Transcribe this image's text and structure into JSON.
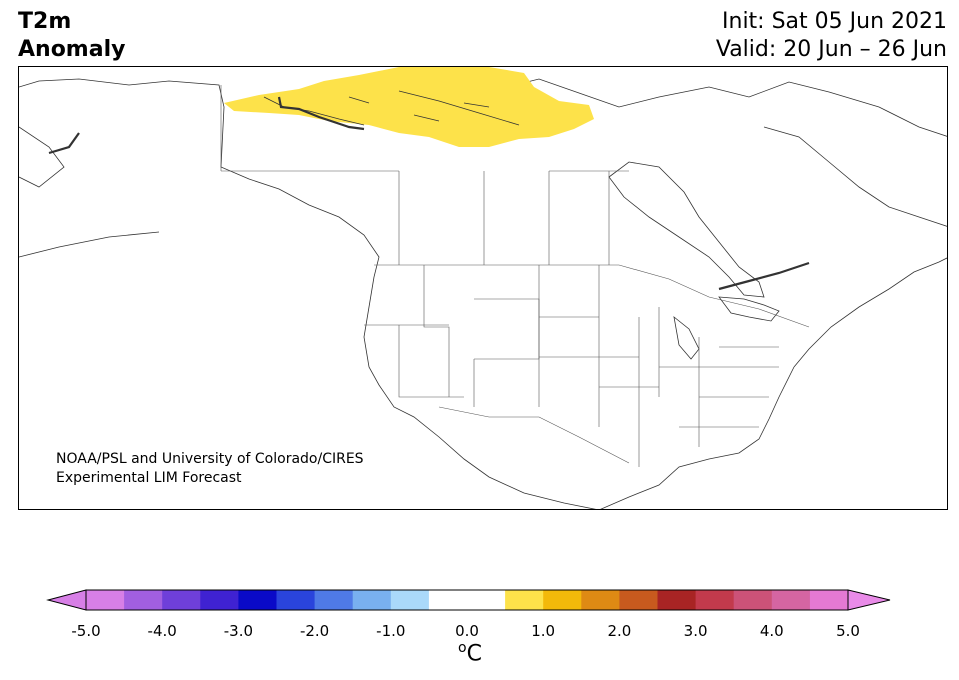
{
  "title": {
    "line1": "T2m",
    "line2": "Anomaly"
  },
  "dates": {
    "init": "Init: Sat 05 Jun 2021",
    "valid": "Valid: 20 Jun – 26 Jun"
  },
  "credit": {
    "line1": "NOAA/PSL and University of Colorado/CIRES",
    "line2": "Experimental LIM Forecast"
  },
  "colorbar": {
    "unit_symbol": "o",
    "unit_letter": "C",
    "ticks": [
      "-5.0",
      "-4.0",
      "-3.0",
      "-2.0",
      "-1.0",
      "0.0",
      "1.0",
      "2.0",
      "3.0",
      "4.0",
      "5.0"
    ],
    "min": -5.0,
    "max": 5.0,
    "step": 0.5,
    "under_color": "#d77fe6",
    "over_color": "#e98be8",
    "colors": [
      "#d77fe6",
      "#a25fe0",
      "#6f3fd9",
      "#3f22d2",
      "#0a0ac8",
      "#2a44dc",
      "#4f7ae6",
      "#79b0ef",
      "#aad9fa",
      "#ffffff",
      "#ffffff",
      "#fde24a",
      "#f3b90a",
      "#de8a14",
      "#c85a1e",
      "#a82424",
      "#c23a4c",
      "#cc5278",
      "#d565a2",
      "#e479d3"
    ]
  },
  "anomaly_regions": [
    {
      "label": "Canadian Arctic warm anomaly",
      "color": "#fde24a"
    }
  ]
}
